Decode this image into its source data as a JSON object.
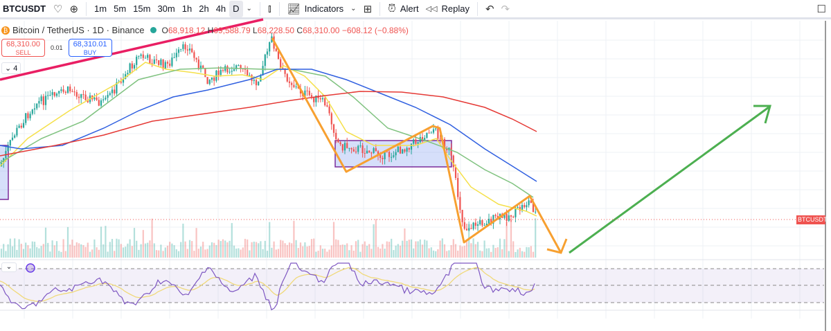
{
  "toolbar": {
    "symbol": "BTCUSDT",
    "timeframes": [
      "1m",
      "5m",
      "15m",
      "30m",
      "1h",
      "2h",
      "4h",
      "D"
    ],
    "active_timeframe": "D",
    "indicators": "Indicators",
    "alert": "Alert",
    "replay": "Replay"
  },
  "legend": {
    "title": "Bitcoin / TetherUS · 1D · Binance",
    "o_label": "O",
    "open": "68,918.12",
    "h_label": "H",
    "high": "69,588.79",
    "l_label": "L",
    "low": "68,228.50",
    "c_label": "C",
    "close": "68,310.00",
    "change": "−608.12 (−0.88%)"
  },
  "trade": {
    "sell_price": "68,310.00",
    "sell_label": "SELL",
    "spread": "0.01",
    "buy_price": "68,310.01",
    "buy_label": "BUY"
  },
  "indicator_count": "4",
  "price_label": "BTCUSDT",
  "colors": {
    "up": "#26a69a",
    "down": "#ef5350",
    "ma20": "#f5e04a",
    "ma50": "#7fc27f",
    "ma100": "#2f5fe0",
    "ma200": "#e53935",
    "zigzag": "#f7a030",
    "arrow": "#4caf50",
    "trend": "#e91e63",
    "rsi": "#7e57c2"
  }
}
